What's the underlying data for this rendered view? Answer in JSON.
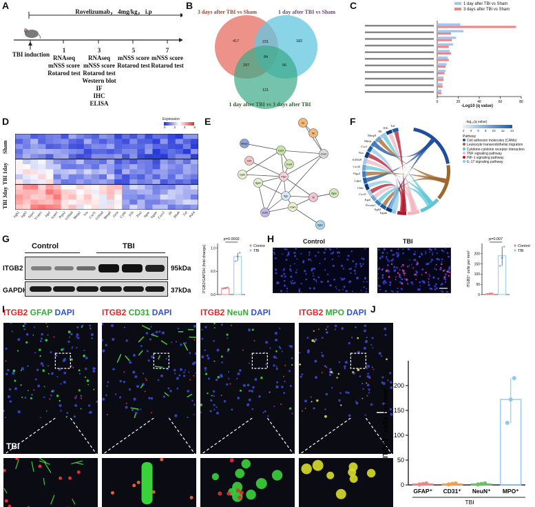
{
  "panels": {
    "A": {
      "letter": "A",
      "drug": "Rovelizumab， 4mg/kg， i.p",
      "induction": "TBI induction",
      "days": [
        {
          "day": "1",
          "items": [
            "RNAseq",
            "mNSS score",
            "Rotarod test"
          ]
        },
        {
          "day": "3",
          "items": [
            "RNAseq",
            "mNSS score",
            "Rotarod test",
            "Western blot",
            "IF",
            "IHC",
            "ELISA"
          ]
        },
        {
          "day": "5",
          "items": [
            "mNSS score",
            "Rotarod test"
          ]
        },
        {
          "day": "7",
          "items": [
            "mNSS score",
            "Rotarod test"
          ]
        }
      ]
    },
    "B": {
      "letter": "B",
      "sets": [
        "3 days after TBI vs Sham",
        "1 day after TBI vs Sham",
        "1 day after TBI vs 3 days after TBI"
      ],
      "set_colors": [
        "#e8776b",
        "#63c5e0",
        "#3aaa88"
      ],
      "regions": {
        "a_only": "417",
        "b_only": "182",
        "c_only": "121",
        "ab": "231",
        "ac": "297",
        "bc": "56",
        "abc": "84"
      }
    },
    "C": {
      "letter": "C",
      "legend": [
        "1 day after TBI vs Sham",
        "3 days after TBI vs Sham"
      ],
      "colors": [
        "#9fc5f0",
        "#f08585"
      ],
      "xlabel": "-Log10 (q value)",
      "ticks": [
        "0",
        "20",
        "40",
        "60",
        "80"
      ]
    },
    "D": {
      "letter": "D",
      "legend_title": "Expression",
      "legend_ticks": [
        "0",
        "2",
        "4",
        "6"
      ],
      "groups": [
        "Sham",
        "TBI 1day",
        "TBI 3day"
      ],
      "genes": [
        "Itgb2",
        "Itgb5",
        "Sipa1",
        "Vcam1",
        "Itgal",
        "Icam1",
        "Ptpn2",
        "S100a9",
        "Mmp2",
        "Vtn",
        "Cxcl1",
        "S100a8",
        "Mmp8",
        "Ocln",
        "Cybb",
        "Il1b",
        "Ptn2",
        "Itgax",
        "Itgam",
        "Cxcr2",
        "Il6",
        "Rhoh",
        "Tnf",
        "Pak4"
      ]
    },
    "E": {
      "letter": "E",
      "nodes": [
        "Cd",
        "Il6",
        "Mmp2",
        "Icam",
        "Cxcl1",
        "Cd4",
        "Cybb",
        "Cxcl4",
        "Ptpn",
        "Itgam",
        "Itgb",
        "Tlr",
        "Itgax",
        "Vcam",
        "S100",
        "Itgb2"
      ]
    },
    "F": {
      "letter": "F",
      "legend_title": "-log₁₀(q value)",
      "legend_ticks": [
        "2",
        "4",
        "6",
        "8",
        "10",
        "12",
        "14"
      ],
      "pathway_title": "Pathway",
      "pathways": [
        {
          "name": "Cell adhesion molecules (CAMs)",
          "color": "#1f4e9c"
        },
        {
          "name": "Leukocyte transendothelial migration",
          "color": "#a0662a"
        },
        {
          "name": "Cytokine-cytokine receptor interaction",
          "color": "#5bc5d8"
        },
        {
          "name": "TNF signaling pathway",
          "color": "#f2b5c2"
        },
        {
          "name": "HIF-1 signaling pathway",
          "color": "#b3152b"
        },
        {
          "name": "IL-17 signaling pathway",
          "color": "#8fc8e8"
        }
      ],
      "genes": [
        "Itgam",
        "Itgb2",
        "Pecam1",
        "Itgal",
        "Cxcl1",
        "Cldn",
        "Cdh5",
        "Ptgs2",
        "Cxcl2",
        "S100a9",
        "Nos",
        "Cxcl",
        "Mmp",
        "Mmp9",
        "Il6",
        "Il1b",
        "Tnf"
      ]
    },
    "G": {
      "letter": "G",
      "group_labels": [
        "Control",
        "TBI"
      ],
      "rows": [
        "ITGB2",
        "GAPDH"
      ],
      "sizes": [
        "95kDa",
        "37kDa"
      ],
      "ylabel": "ITGB2/GAPDH (fold change)",
      "pvalue": "p=0.0002",
      "legend": [
        "Control",
        "TBI"
      ],
      "yticks": [
        "0.0",
        "0.5",
        "1.0"
      ],
      "bar_colors": [
        "#f08585",
        "#8fc8ee"
      ],
      "chart_data": {
        "type": "bar",
        "categories": [
          "Control",
          "TBI"
        ],
        "values": [
          0.14,
          0.82
        ],
        "points": [
          [
            0.13,
            0.14,
            0.15
          ],
          [
            0.72,
            0.82,
            0.9
          ]
        ],
        "ylabel": "ITGB2/GAPDH (fold change)",
        "ylim": [
          0,
          1.1
        ]
      }
    },
    "H": {
      "letter": "H",
      "image_labels": [
        "Control",
        "TBI"
      ],
      "ylabel": "ITGB2⁺ cells per mm²",
      "pvalue": "p=0.007",
      "legend": [
        "Control",
        "TBI"
      ],
      "yticks": [
        "0",
        "50",
        "100",
        "150",
        "200"
      ],
      "chart_data": {
        "type": "bar",
        "categories": [
          "Control",
          "TBI"
        ],
        "values": [
          4,
          190
        ],
        "points": [
          [
            2,
            4,
            6
          ],
          [
            140,
            180,
            235
          ]
        ],
        "ylabel": "ITGB2+ cells per mm2",
        "ylim": [
          0,
          250
        ]
      }
    },
    "I": {
      "letter": "I",
      "stains": [
        {
          "a": "ITGB2",
          "b": "GFAP",
          "c": "DAPI",
          "bcolor": "#2eae2e"
        },
        {
          "a": "ITGB2",
          "b": "CD31",
          "c": "DAPI",
          "bcolor": "#2eae2e"
        },
        {
          "a": "ITGB2",
          "b": "NeuN",
          "c": "DAPI",
          "bcolor": "#2eae2e"
        },
        {
          "a": "ITGB2",
          "b": "MPO",
          "c": "DAPI",
          "bcolor": "#2eae2e"
        }
      ],
      "tbi_label": "TBI"
    },
    "J": {
      "letter": "J",
      "ylabel": "ITGB2⁺ cells per mm²",
      "yticks": [
        "0",
        "50",
        "100",
        "150",
        "200"
      ],
      "xlabels": [
        "GFAP⁺",
        "CD31⁺",
        "NeuN⁺",
        "MPO⁺"
      ],
      "group": "TBI",
      "chart_data": {
        "type": "bar",
        "categories": [
          "GFAP+",
          "CD31+",
          "NeuN+",
          "MPO+"
        ],
        "values": [
          2,
          2,
          2,
          172
        ],
        "points": [
          [
            1,
            2,
            3
          ],
          [
            1,
            2,
            3
          ],
          [
            1,
            2,
            3
          ],
          [
            125,
            172,
            215
          ]
        ],
        "colors": [
          "#f08585",
          "#f0a050",
          "#68c068",
          "#8fc8ee"
        ],
        "ylabel": "ITGB2+ cells per mm2",
        "ylim": [
          0,
          250
        ]
      }
    }
  }
}
